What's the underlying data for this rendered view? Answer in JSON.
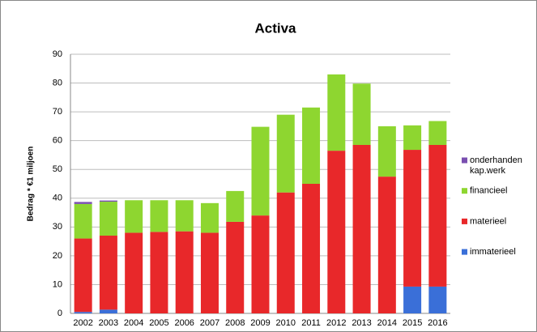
{
  "chart_data": {
    "type": "bar",
    "stacked": true,
    "title": "Activa",
    "y_label": "Bedrag * €1 miljoen",
    "categories": [
      "2002",
      "2003",
      "2004",
      "2005",
      "2006",
      "2007",
      "2008",
      "2009",
      "2010",
      "2011",
      "2012",
      "2013",
      "2014",
      "2015",
      "2016"
    ],
    "series": [
      {
        "name": "immaterieel",
        "color": "#3a6fd8",
        "values": [
          0.5,
          1.3,
          0,
          0,
          0,
          0,
          0,
          0,
          0,
          0,
          0,
          0,
          0,
          9.3,
          9.3
        ]
      },
      {
        "name": "materieel",
        "color": "#e8282a",
        "values": [
          25.5,
          25.7,
          28,
          28.3,
          28.5,
          28,
          31.8,
          34,
          42,
          45,
          56.5,
          58.5,
          47.5,
          47.5,
          49.2
        ]
      },
      {
        "name": "financieel",
        "color": "#8ed630",
        "values": [
          12,
          11.8,
          11.3,
          11,
          10.8,
          10.3,
          10.7,
          30.8,
          27,
          26.5,
          26.5,
          21.3,
          17.5,
          8.5,
          8.3
        ]
      },
      {
        "name": "onderhanden kap.werk",
        "color": "#7a4fb0",
        "values": [
          0.7,
          0.4,
          0,
          0,
          0,
          0,
          0,
          0,
          0,
          0,
          0,
          0,
          0,
          0,
          0
        ]
      }
    ],
    "ylim": [
      0,
      90
    ],
    "yticks": [
      0,
      10,
      20,
      30,
      40,
      50,
      60,
      70,
      80,
      90
    ],
    "grid": true,
    "legend": "right"
  }
}
